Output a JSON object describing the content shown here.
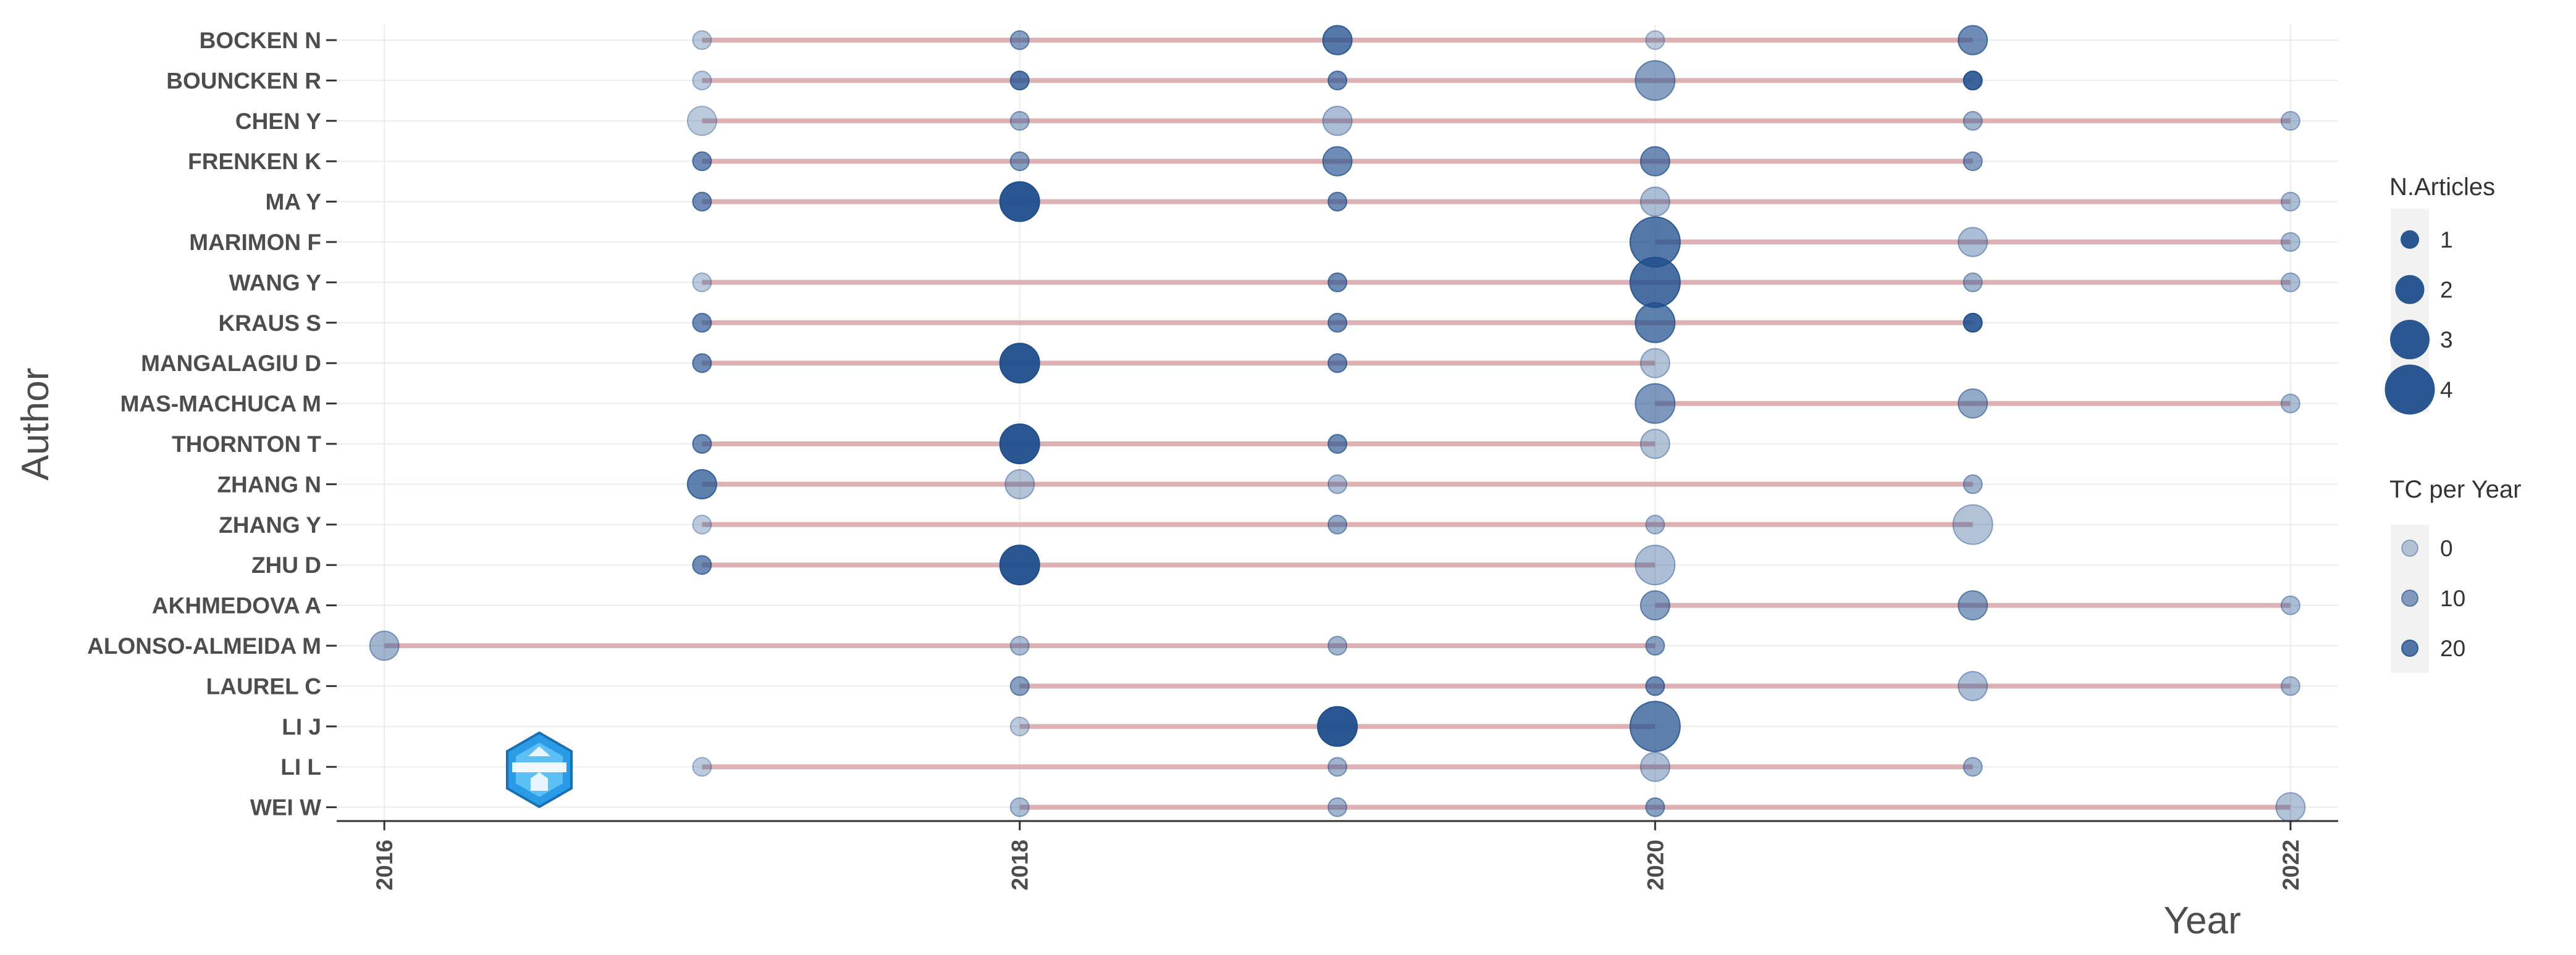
{
  "chart_data": {
    "type": "scatter",
    "title": "",
    "xlabel": "Year",
    "ylabel": "Author",
    "xlim": [
      2015.85,
      2022.15
    ],
    "x_ticks": [
      2016,
      2018,
      2020,
      2022
    ],
    "grid": true,
    "legend_position": "right",
    "colors": {
      "timeline": "#d9a5a8",
      "point": "#1f4e8c",
      "grid": "#ececec",
      "axis": "#333333"
    },
    "size_legend": {
      "title": "N.Articles",
      "values": [
        1,
        2,
        3,
        4
      ]
    },
    "color_legend": {
      "title": "TC per Year",
      "values": [
        0,
        10,
        20
      ]
    },
    "authors": [
      {
        "name": "BOCKEN N",
        "span": [
          2017,
          2021
        ],
        "points": [
          [
            2017,
            1,
            0
          ],
          [
            2018,
            1,
            10
          ],
          [
            2019,
            2,
            20
          ],
          [
            2020,
            1,
            0
          ],
          [
            2021,
            2,
            15
          ]
        ]
      },
      {
        "name": "BOUNCKEN R",
        "span": [
          2017,
          2021
        ],
        "points": [
          [
            2017,
            1,
            0
          ],
          [
            2018,
            1,
            20
          ],
          [
            2019,
            1,
            15
          ],
          [
            2020,
            3,
            10
          ],
          [
            2021,
            1,
            25
          ]
        ]
      },
      {
        "name": "CHEN Y",
        "span": [
          2017,
          2022
        ],
        "points": [
          [
            2017,
            2,
            0
          ],
          [
            2018,
            1,
            5
          ],
          [
            2019,
            2,
            3
          ],
          [
            2021,
            1,
            5
          ],
          [
            2022,
            1,
            3
          ]
        ]
      },
      {
        "name": "FRENKEN K",
        "span": [
          2017,
          2021
        ],
        "points": [
          [
            2017,
            1,
            15
          ],
          [
            2018,
            1,
            10
          ],
          [
            2019,
            2,
            15
          ],
          [
            2020,
            2,
            15
          ],
          [
            2021,
            1,
            10
          ]
        ]
      },
      {
        "name": "MA Y",
        "span": [
          2017,
          2022
        ],
        "points": [
          [
            2017,
            1,
            15
          ],
          [
            2018,
            3,
            28
          ],
          [
            2019,
            1,
            15
          ],
          [
            2020,
            2,
            3
          ],
          [
            2022,
            1,
            3
          ]
        ]
      },
      {
        "name": "MARIMON F",
        "span": [
          2020,
          2022
        ],
        "points": [
          [
            2020,
            4,
            20
          ],
          [
            2021,
            2,
            3
          ],
          [
            2022,
            1,
            3
          ]
        ]
      },
      {
        "name": "WANG Y",
        "span": [
          2017,
          2022
        ],
        "points": [
          [
            2017,
            1,
            0
          ],
          [
            2019,
            1,
            15
          ],
          [
            2020,
            4,
            22
          ],
          [
            2021,
            1,
            5
          ],
          [
            2022,
            1,
            3
          ]
        ]
      },
      {
        "name": "KRAUS S",
        "span": [
          2017,
          2021
        ],
        "points": [
          [
            2017,
            1,
            15
          ],
          [
            2019,
            1,
            15
          ],
          [
            2020,
            3,
            18
          ],
          [
            2021,
            1,
            25
          ]
        ]
      },
      {
        "name": "MANGALAGIU D",
        "span": [
          2017,
          2020
        ],
        "points": [
          [
            2017,
            1,
            15
          ],
          [
            2018,
            3,
            28
          ],
          [
            2019,
            1,
            15
          ],
          [
            2020,
            2,
            2
          ]
        ]
      },
      {
        "name": "MAS-MACHUCA M",
        "span": [
          2020,
          2022
        ],
        "points": [
          [
            2020,
            3,
            12
          ],
          [
            2021,
            2,
            8
          ],
          [
            2022,
            1,
            3
          ]
        ]
      },
      {
        "name": "THORNTON T",
        "span": [
          2017,
          2020
        ],
        "points": [
          [
            2017,
            1,
            15
          ],
          [
            2018,
            3,
            28
          ],
          [
            2019,
            1,
            15
          ],
          [
            2020,
            2,
            2
          ]
        ]
      },
      {
        "name": "ZHANG N",
        "span": [
          2017,
          2021
        ],
        "points": [
          [
            2017,
            2,
            18
          ],
          [
            2018,
            2,
            2
          ],
          [
            2019,
            1,
            3
          ],
          [
            2021,
            1,
            5
          ]
        ]
      },
      {
        "name": "ZHANG Y",
        "span": [
          2017,
          2021
        ],
        "points": [
          [
            2017,
            1,
            0
          ],
          [
            2019,
            1,
            8
          ],
          [
            2020,
            1,
            3
          ],
          [
            2021,
            3,
            2
          ]
        ]
      },
      {
        "name": "ZHU D",
        "span": [
          2017,
          2020
        ],
        "points": [
          [
            2017,
            1,
            15
          ],
          [
            2018,
            3,
            28
          ],
          [
            2020,
            3,
            3
          ]
        ]
      },
      {
        "name": "AKHMEDOVA A",
        "span": [
          2020,
          2022
        ],
        "points": [
          [
            2020,
            2,
            10
          ],
          [
            2021,
            2,
            10
          ],
          [
            2022,
            1,
            3
          ]
        ]
      },
      {
        "name": "ALONSO-ALMEIDA M",
        "span": [
          2016,
          2020
        ],
        "points": [
          [
            2016,
            2,
            5
          ],
          [
            2018,
            1,
            3
          ],
          [
            2019,
            1,
            5
          ],
          [
            2020,
            1,
            10
          ]
        ]
      },
      {
        "name": "LAUREL C",
        "span": [
          2018,
          2022
        ],
        "points": [
          [
            2018,
            1,
            10
          ],
          [
            2020,
            1,
            15
          ],
          [
            2021,
            2,
            3
          ],
          [
            2022,
            1,
            3
          ]
        ]
      },
      {
        "name": "LI J",
        "span": [
          2018,
          2020
        ],
        "points": [
          [
            2018,
            1,
            0
          ],
          [
            2019,
            3,
            28
          ],
          [
            2020,
            4,
            18
          ]
        ]
      },
      {
        "name": "LI L",
        "span": [
          2017,
          2021
        ],
        "points": [
          [
            2017,
            1,
            0
          ],
          [
            2019,
            1,
            5
          ],
          [
            2020,
            2,
            3
          ],
          [
            2021,
            1,
            5
          ]
        ]
      },
      {
        "name": "WEI W",
        "span": [
          2018,
          2022
        ],
        "points": [
          [
            2018,
            1,
            3
          ],
          [
            2019,
            1,
            5
          ],
          [
            2020,
            1,
            10
          ],
          [
            2022,
            2,
            2
          ]
        ]
      }
    ]
  }
}
